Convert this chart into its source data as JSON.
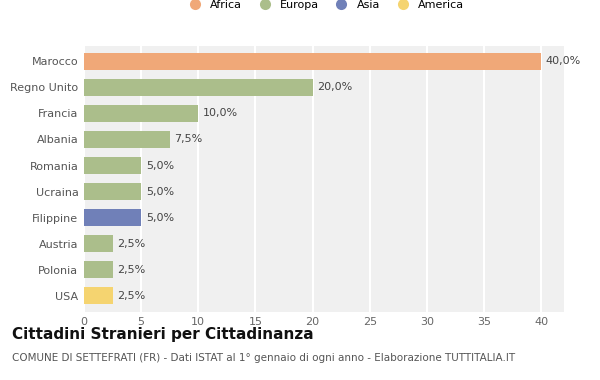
{
  "categories": [
    "Marocco",
    "Regno Unito",
    "Francia",
    "Albania",
    "Romania",
    "Ucraina",
    "Filippine",
    "Austria",
    "Polonia",
    "USA"
  ],
  "values": [
    40.0,
    20.0,
    10.0,
    7.5,
    5.0,
    5.0,
    5.0,
    2.5,
    2.5,
    2.5
  ],
  "labels": [
    "40,0%",
    "20,0%",
    "10,0%",
    "7,5%",
    "5,0%",
    "5,0%",
    "5,0%",
    "2,5%",
    "2,5%",
    "2,5%"
  ],
  "bar_colors": [
    "#F0A878",
    "#ABBE8B",
    "#ABBE8B",
    "#ABBE8B",
    "#ABBE8B",
    "#ABBE8B",
    "#7080B8",
    "#ABBE8B",
    "#ABBE8B",
    "#F5D470"
  ],
  "legend_labels": [
    "Africa",
    "Europa",
    "Asia",
    "America"
  ],
  "legend_colors": [
    "#F0A878",
    "#ABBE8B",
    "#7080B8",
    "#F5D470"
  ],
  "title": "Cittadini Stranieri per Cittadinanza",
  "subtitle": "COMUNE DI SETTEFRATI (FR) - Dati ISTAT al 1° gennaio di ogni anno - Elaborazione TUTTITALIA.IT",
  "xlim": [
    0,
    42
  ],
  "xticks": [
    0,
    5,
    10,
    15,
    20,
    25,
    30,
    35,
    40
  ],
  "background_color": "#ffffff",
  "plot_background": "#f0f0f0",
  "grid_color": "#ffffff",
  "title_fontsize": 11,
  "subtitle_fontsize": 7.5,
  "label_fontsize": 8,
  "tick_fontsize": 8
}
